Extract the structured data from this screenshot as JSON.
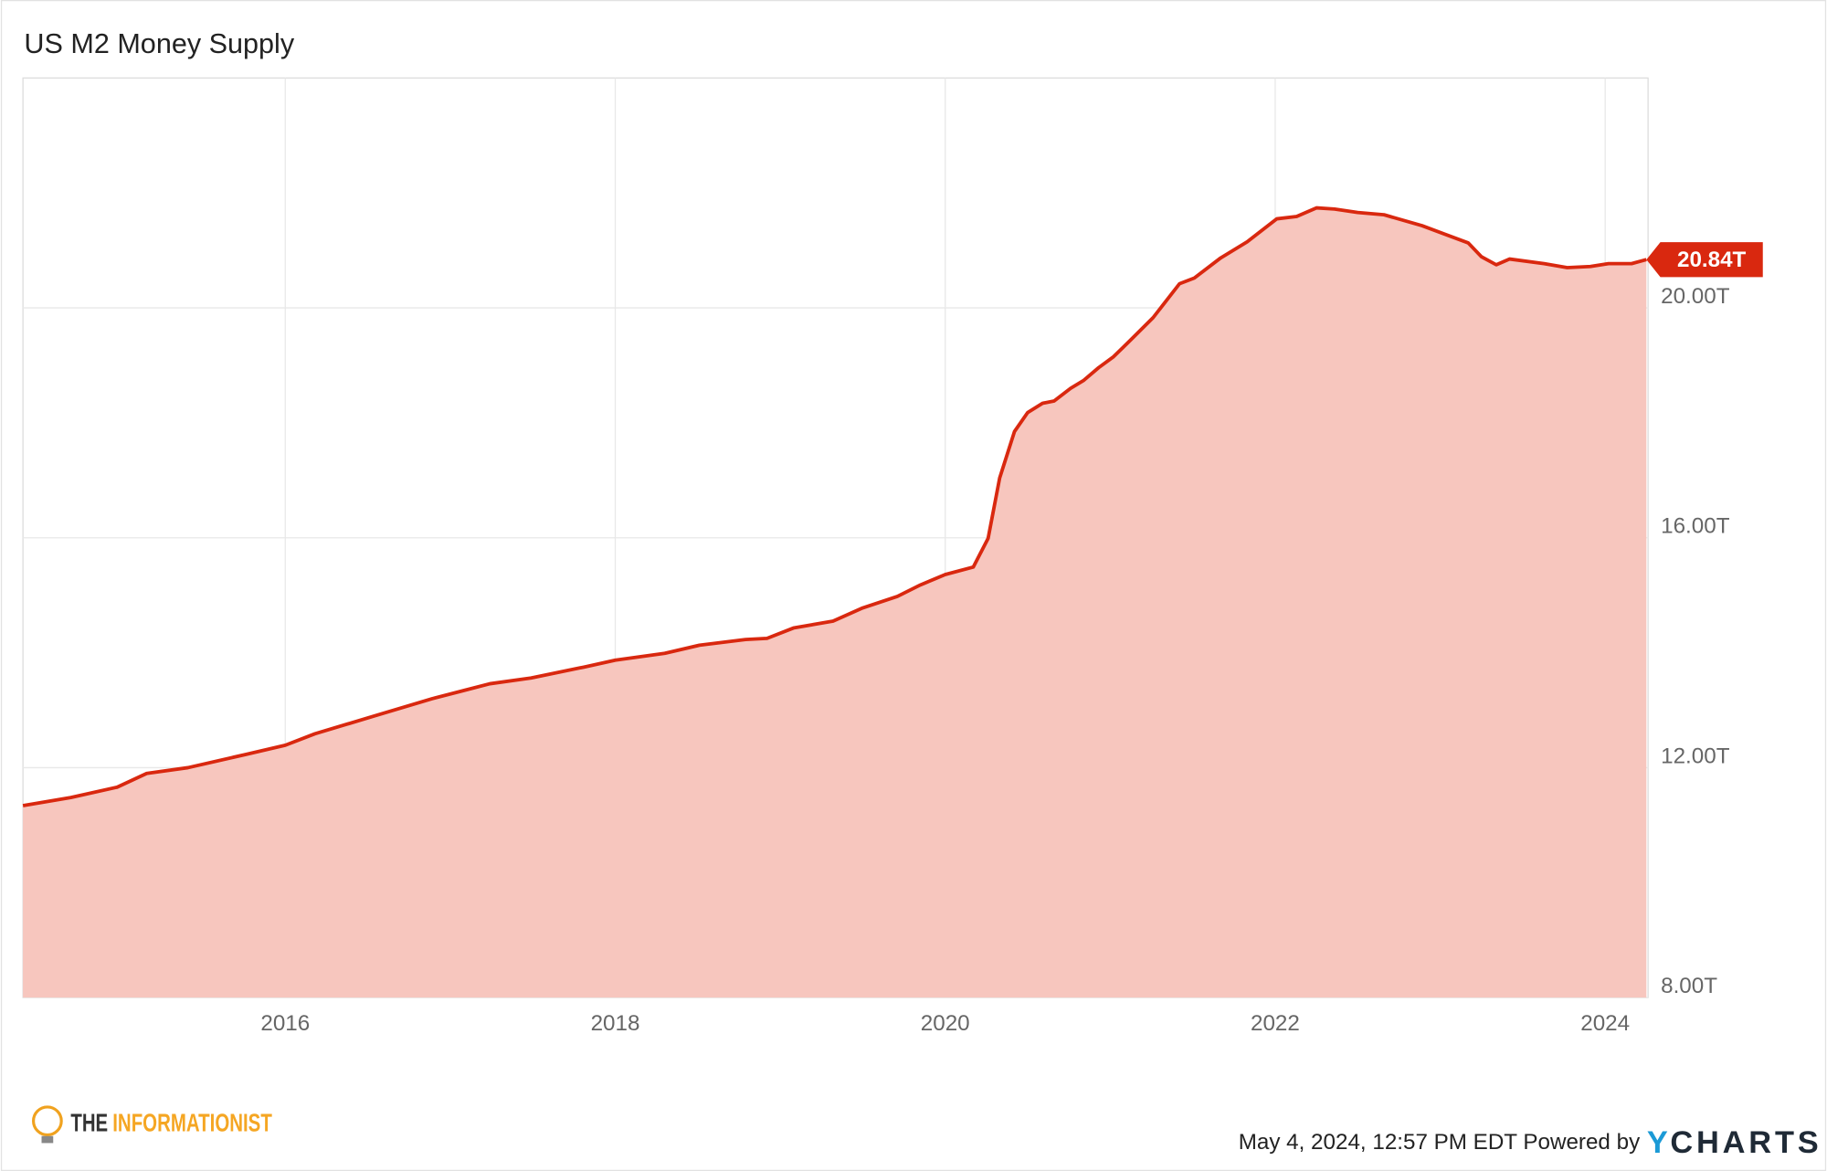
{
  "chart_data": {
    "type": "area",
    "title": "US M2 Money Supply",
    "series": [
      {
        "name": "US M2 Money Supply",
        "color": "#d9280f",
        "fill": "#f7c6be",
        "x": [
          2014.41,
          2014.7,
          2014.98,
          2015.16,
          2015.41,
          2015.76,
          2016.0,
          2016.18,
          2016.54,
          2016.89,
          2017.24,
          2017.49,
          2017.81,
          2018.0,
          2018.3,
          2018.51,
          2018.79,
          2018.92,
          2019.08,
          2019.32,
          2019.5,
          2019.71,
          2019.85,
          2020.0,
          2020.17,
          2020.26,
          2020.33,
          2020.42,
          2020.5,
          2020.59,
          2020.66,
          2020.76,
          2020.84,
          2020.93,
          2021.02,
          2021.12,
          2021.26,
          2021.42,
          2021.51,
          2021.67,
          2021.83,
          2022.01,
          2022.13,
          2022.25,
          2022.36,
          2022.5,
          2022.66,
          2022.89,
          2023.17,
          2023.25,
          2023.34,
          2023.42,
          2023.63,
          2023.77,
          2023.91,
          2024.02,
          2024.16,
          2024.25
        ],
        "values": [
          11.34,
          11.48,
          11.66,
          11.9,
          12.0,
          12.23,
          12.39,
          12.59,
          12.9,
          13.2,
          13.46,
          13.56,
          13.75,
          13.87,
          13.99,
          14.13,
          14.23,
          14.25,
          14.43,
          14.55,
          14.78,
          14.98,
          15.18,
          15.36,
          15.49,
          15.99,
          17.04,
          17.85,
          18.18,
          18.34,
          18.38,
          18.6,
          18.74,
          18.96,
          19.15,
          19.43,
          19.83,
          20.42,
          20.52,
          20.87,
          21.15,
          21.55,
          21.59,
          21.74,
          21.72,
          21.66,
          21.62,
          21.43,
          21.13,
          20.89,
          20.75,
          20.85,
          20.77,
          20.7,
          20.72,
          20.77,
          20.77,
          20.84
        ],
        "value_labels": [
          null,
          null,
          null,
          null,
          null,
          null,
          null,
          null,
          null,
          null,
          null,
          null,
          null,
          null,
          null,
          null,
          null,
          null,
          null,
          null,
          null,
          null,
          null,
          null,
          null,
          null,
          null,
          null,
          null,
          null,
          null,
          null,
          null,
          null,
          null,
          null,
          null,
          null,
          null,
          null,
          null,
          null,
          null,
          null,
          null,
          null,
          null,
          null,
          null,
          null,
          null,
          null,
          null,
          null,
          null,
          null,
          null,
          "20.84T"
        ]
      }
    ],
    "xlim": [
      2014.41,
      2024.26
    ],
    "xticks": [
      2016,
      2018,
      2020,
      2022,
      2024
    ],
    "ylim": [
      8,
      24
    ],
    "yticks": [
      {
        "value": 8,
        "label": "8.00T"
      },
      {
        "value": 12,
        "label": "12.00T"
      },
      {
        "value": 16,
        "label": "16.00T"
      },
      {
        "value": 20,
        "label": "20.00T"
      }
    ],
    "grid": true,
    "footer": "May 4, 2024, 12:57 PM EDT Powered by",
    "logo": {
      "mark": "Y",
      "name": "CHARTS"
    },
    "watermark": {
      "prefix": "THE",
      "name": "INFORMATIONIST"
    }
  }
}
